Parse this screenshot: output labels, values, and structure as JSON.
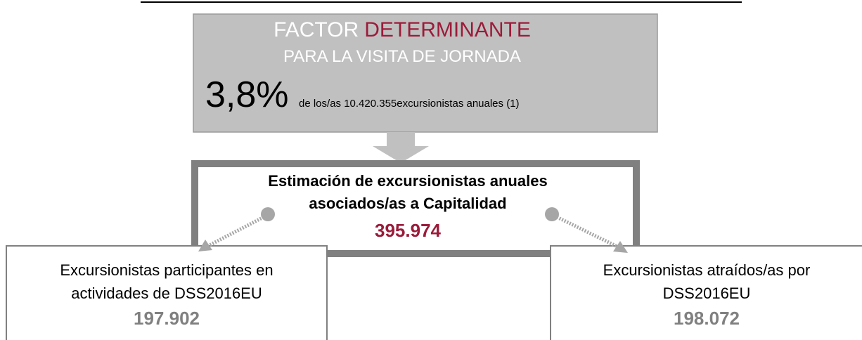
{
  "top_box": {
    "title_part1": "FACTOR",
    "title_part2": "DETERMINANTE",
    "subtitle": "PARA LA VISITA DE JORNADA",
    "percentage": "3,8%",
    "description": "de los/as 10.420.355excursionistas anuales (1)"
  },
  "center_box": {
    "line1": "Estimación de excursionistas anuales",
    "line2": "asociados/as a Capitalidad",
    "value": "395.974"
  },
  "left_box": {
    "line1": "Excursionistas participantes en",
    "line2": "actividades de DSS2016EU",
    "value": "197.902"
  },
  "right_box": {
    "line1": "Excursionistas atraídos/as por",
    "line2": "DSS2016EU",
    "value": "198.072"
  }
}
